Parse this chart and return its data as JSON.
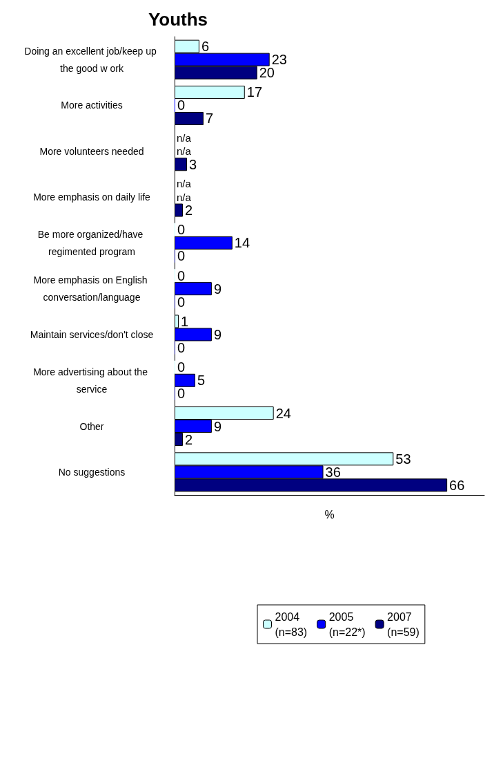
{
  "chart_data": {
    "type": "bar",
    "orientation": "horizontal",
    "title": "Youths",
    "xlabel": "%",
    "categories": [
      "Doing an excellent job/keep up the good w ork",
      "More activities",
      "More volunteers needed",
      "More emphasis on daily life",
      "Be more organized/have regimented program",
      "More emphasis on English conversation/language",
      "Maintain services/don't close",
      "More advertising about the service",
      "Other",
      "No suggestions"
    ],
    "series": [
      {
        "name": "2004\n(n=83)",
        "color": "#ccffff",
        "values": [
          6,
          17,
          null,
          null,
          0,
          0,
          1,
          0,
          24,
          53
        ],
        "value_labels": [
          "6",
          "17",
          "n/a",
          "n/a",
          "0",
          "0",
          "1",
          "0",
          "24",
          "53"
        ]
      },
      {
        "name": "2005\n(n=22*)",
        "color": "#0000ff",
        "values": [
          23,
          0,
          null,
          null,
          14,
          9,
          9,
          5,
          9,
          36
        ],
        "value_labels": [
          "23",
          "0",
          "n/a",
          "n/a",
          "14",
          "9",
          "9",
          "5",
          "9",
          "36"
        ]
      },
      {
        "name": "2007\n(n=59)",
        "color": "#000080",
        "values": [
          20,
          7,
          3,
          2,
          0,
          0,
          0,
          0,
          2,
          66
        ],
        "value_labels": [
          "20",
          "7",
          "3",
          "2",
          "0",
          "0",
          "0",
          "0",
          "2",
          "66"
        ]
      }
    ],
    "xlim": [
      0,
      75
    ],
    "tick_labels": "y",
    "grid": false,
    "legend": "bottom"
  }
}
